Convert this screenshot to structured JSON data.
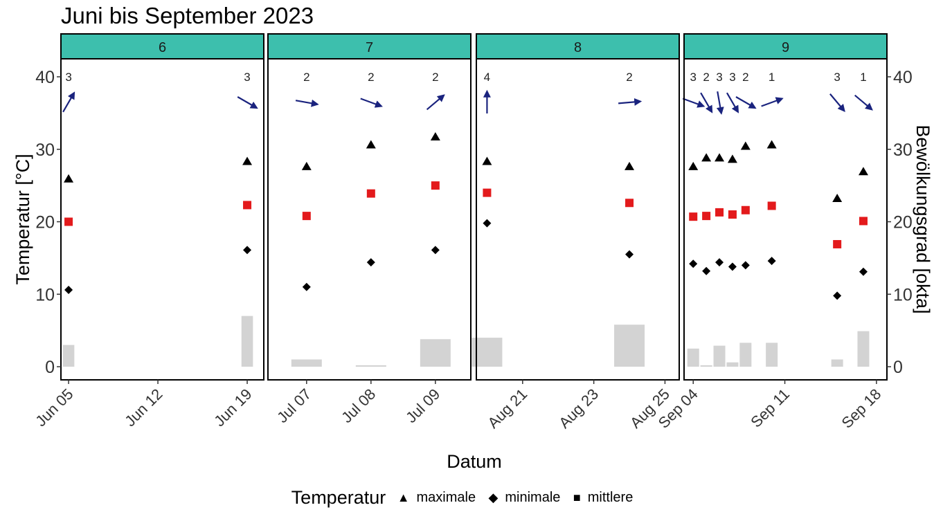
{
  "chart_data": {
    "type": "faceted-scatter",
    "title": "Juni bis September 2023",
    "xlabel": "Datum",
    "ylabel": "Temperatur [°C]",
    "ylabel_right": "Bewölkungsgrad [okta]",
    "ylim": [
      0,
      40
    ],
    "y_ticks": [
      "0",
      "10",
      "20",
      "30",
      "40"
    ],
    "y_ticks_right": [
      "0",
      "10",
      "20",
      "30",
      "40"
    ],
    "grid": false,
    "legend": {
      "title": "Temperatur",
      "position": "bottom",
      "items": [
        {
          "label": "maximale",
          "symbol": "▲"
        },
        {
          "label": "minimale",
          "symbol": "◆"
        },
        {
          "label": "mittlere",
          "symbol": "■"
        }
      ]
    },
    "colors": {
      "max": "#000000",
      "min": "#000000",
      "mean": "#e31a1c",
      "wind": "#1a237e",
      "cloud": "#d3d3d3",
      "strip": "#3dbfad"
    },
    "facets": [
      {
        "label": "6",
        "x_ticks": [
          {
            "x": 5,
            "label": "Jun 05"
          },
          {
            "x": 12,
            "label": "Jun 12"
          },
          {
            "x": 19,
            "label": "Jun 19"
          }
        ],
        "xlim": [
          4.4,
          20.3
        ],
        "points": [
          {
            "x": 5,
            "max": 25.9,
            "mean": 20.0,
            "min": 10.6,
            "cloud": 3,
            "wind_dir": 210,
            "label": "3"
          },
          {
            "x": 19,
            "max": 28.3,
            "mean": 22.3,
            "min": 16.1,
            "cloud": 7,
            "wind_dir": 300,
            "label": "3"
          }
        ]
      },
      {
        "label": "7",
        "x_ticks": [
          {
            "x": 7,
            "label": "Jul 07"
          },
          {
            "x": 8,
            "label": "Jul 08"
          },
          {
            "x": 9,
            "label": "Jul 09"
          }
        ],
        "xlim": [
          6.4,
          9.55
        ],
        "points": [
          {
            "x": 7,
            "max": 27.6,
            "mean": 20.8,
            "min": 11.0,
            "cloud": 1,
            "wind_dir": 280,
            "label": "2"
          },
          {
            "x": 8,
            "max": 30.6,
            "mean": 23.9,
            "min": 14.4,
            "cloud": 0.2,
            "wind_dir": 290,
            "label": "2"
          },
          {
            "x": 9,
            "max": 31.7,
            "mean": 25.0,
            "min": 16.1,
            "cloud": 3.8,
            "wind_dir": 230,
            "label": "2"
          }
        ]
      },
      {
        "label": "8",
        "x_ticks": [
          {
            "x": 21,
            "label": "Aug 21"
          },
          {
            "x": 23,
            "label": "Aug 23"
          },
          {
            "x": 25,
            "label": "Aug 25"
          }
        ],
        "xlim": [
          19.7,
          25.4
        ],
        "points": [
          {
            "x": 20,
            "max": 28.3,
            "mean": 24.0,
            "min": 19.8,
            "cloud": 4,
            "wind_dir": 180,
            "label": "4"
          },
          {
            "x": 24,
            "max": 27.6,
            "mean": 22.6,
            "min": 15.5,
            "cloud": 5.8,
            "wind_dir": 265,
            "label": "2"
          }
        ]
      },
      {
        "label": "9",
        "x_ticks": [
          {
            "x": 4,
            "label": "Sep 04"
          },
          {
            "x": 11,
            "label": "Sep 11"
          },
          {
            "x": 18,
            "label": "Sep 18"
          }
        ],
        "xlim": [
          3.3,
          18.8
        ],
        "points": [
          {
            "x": 4,
            "max": 27.6,
            "mean": 20.7,
            "min": 14.2,
            "cloud": 2.5,
            "wind_dir": 290,
            "label": "3"
          },
          {
            "x": 5,
            "max": 28.8,
            "mean": 20.8,
            "min": 13.2,
            "cloud": 0.2,
            "wind_dir": 330,
            "label": "2"
          },
          {
            "x": 6,
            "max": 28.8,
            "mean": 21.3,
            "min": 14.4,
            "cloud": 2.9,
            "wind_dir": 350,
            "label": "3"
          },
          {
            "x": 7,
            "max": 28.6,
            "mean": 21.0,
            "min": 13.8,
            "cloud": 0.6,
            "wind_dir": 330,
            "label": "3"
          },
          {
            "x": 8,
            "max": 30.4,
            "mean": 21.6,
            "min": 14.0,
            "cloud": 3.3,
            "wind_dir": 300,
            "label": "2"
          },
          {
            "x": 10,
            "max": 30.6,
            "mean": 22.2,
            "min": 14.6,
            "cloud": 3.3,
            "wind_dir": 250,
            "label": "1"
          },
          {
            "x": 15,
            "max": 23.2,
            "mean": 16.9,
            "min": 9.8,
            "cloud": 1,
            "wind_dir": 320,
            "label": "3"
          },
          {
            "x": 17,
            "max": 26.9,
            "mean": 20.1,
            "min": 13.1,
            "cloud": 4.9,
            "wind_dir": 310,
            "label": "1"
          }
        ]
      }
    ]
  }
}
